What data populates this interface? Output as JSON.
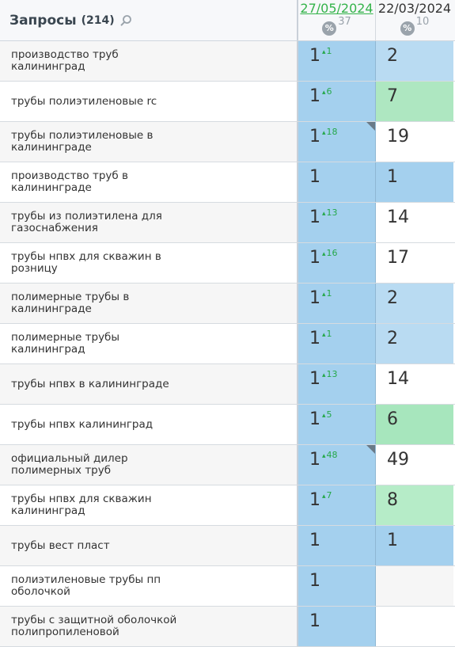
{
  "header": {
    "title": "Запросы",
    "count": "(214)",
    "dates": [
      {
        "label": "27/05/2024",
        "pct": "37",
        "active": true
      },
      {
        "label": "22/03/2024",
        "pct": "10",
        "active": false
      }
    ]
  },
  "colors": {
    "col1_bg": "#a4d0ee",
    "pos_top": "#a4d0ee",
    "pos_mid_light": "#b9dbf2",
    "green": "#a7e6bd",
    "green_light": "#b6ecc8",
    "white": "#ffffff"
  },
  "rows": [
    {
      "query": "производство труб калининград",
      "p1": "1",
      "d1": "1",
      "p2": "2",
      "c2": "#b9dbf2",
      "mark": false
    },
    {
      "query": "трубы полиэтиленовые rc",
      "p1": "1",
      "d1": "6",
      "p2": "7",
      "c2": "#aee7c1",
      "mark": false
    },
    {
      "query": "трубы полиэтиленовые в калининграде",
      "p1": "1",
      "d1": "18",
      "p2": "19",
      "c2": "#ffffff",
      "mark": true
    },
    {
      "query": "производство труб в калининграде",
      "p1": "1",
      "d1": "",
      "p2": "1",
      "c2": "#a4d0ee",
      "mark": false
    },
    {
      "query": "трубы из полиэтилена для газоснабжения",
      "p1": "1",
      "d1": "13",
      "p2": "14",
      "c2": "#ffffff",
      "mark": false
    },
    {
      "query": "трубы нпвх для скважин в розницу",
      "p1": "1",
      "d1": "16",
      "p2": "17",
      "c2": "#ffffff",
      "mark": false
    },
    {
      "query": "полимерные трубы в калининграде",
      "p1": "1",
      "d1": "1",
      "p2": "2",
      "c2": "#b9dbf2",
      "mark": false
    },
    {
      "query": "полимерные трубы калининград",
      "p1": "1",
      "d1": "1",
      "p2": "2",
      "c2": "#b9dbf2",
      "mark": false
    },
    {
      "query": "трубы нпвх в калининграде",
      "p1": "1",
      "d1": "13",
      "p2": "14",
      "c2": "#ffffff",
      "mark": false
    },
    {
      "query": "трубы нпвх калининград",
      "p1": "1",
      "d1": "5",
      "p2": "6",
      "c2": "#a7e6bd",
      "mark": false
    },
    {
      "query": "официальный дилер полимерных труб",
      "p1": "1",
      "d1": "48",
      "p2": "49",
      "c2": "#ffffff",
      "mark": true
    },
    {
      "query": "трубы нпвх для скважин калининград",
      "p1": "1",
      "d1": "7",
      "p2": "8",
      "c2": "#b6ecc8",
      "mark": false
    },
    {
      "query": "трубы вест пласт",
      "p1": "1",
      "d1": "",
      "p2": "1",
      "c2": "#a4d0ee",
      "mark": false
    },
    {
      "query": "полиэтиленовые трубы пп оболочкой",
      "p1": "1",
      "d1": "",
      "p2": "",
      "c2": "#f6f6f6",
      "mark": false
    },
    {
      "query": "трубы с защитной оболочкой полипропиленовой",
      "p1": "1",
      "d1": "",
      "p2": "",
      "c2": "#ffffff",
      "mark": false
    }
  ]
}
